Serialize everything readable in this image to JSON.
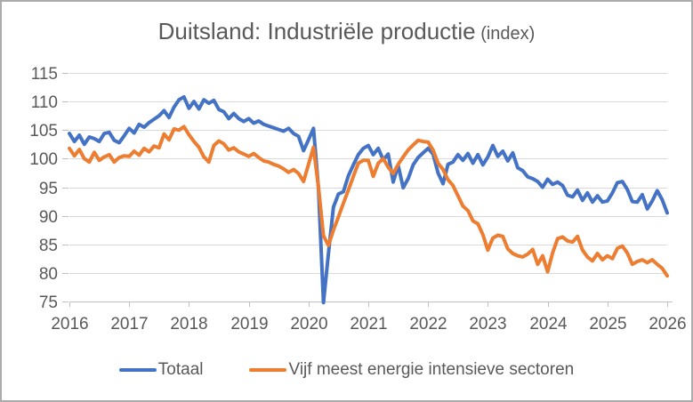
{
  "title": {
    "text": "Duitsland: Industriële productie",
    "suffix": " (index)"
  },
  "colors": {
    "totaal": "#4472C4",
    "energie": "#ED7D31",
    "gridline": "#D9D9D9",
    "axis": "#BFBFBF",
    "text": "#595959",
    "frame_border": "#ABABAB",
    "background": "#FFFFFF"
  },
  "legend": [
    {
      "label": "Totaal",
      "color": "#4472C4"
    },
    {
      "label": "Vijf meest energie intensieve sectoren",
      "color": "#ED7D31"
    }
  ],
  "chart_data": {
    "type": "line",
    "title": "Duitsland: Industriële productie (index)",
    "x_unit": "month",
    "x_start": "2016-01",
    "x_end": "2026-01",
    "x_tick_labels": [
      "2016",
      "2017",
      "2018",
      "2019",
      "2020",
      "2021",
      "2022",
      "2023",
      "2024",
      "2025",
      "2026"
    ],
    "y_ticks": [
      75,
      80,
      85,
      90,
      95,
      100,
      105,
      110,
      115
    ],
    "ylim": [
      75,
      115
    ],
    "grid": "horizontal",
    "legend_position": "bottom",
    "series": [
      {
        "name": "Totaal",
        "color": "#4472C4",
        "values": [
          104.4,
          103.0,
          104.1,
          102.5,
          103.8,
          103.5,
          103.0,
          104.4,
          104.6,
          103.2,
          102.8,
          104.0,
          105.3,
          104.5,
          106.0,
          105.5,
          106.3,
          106.9,
          107.5,
          108.4,
          107.2,
          109.0,
          110.3,
          110.8,
          108.8,
          110.0,
          108.7,
          110.3,
          109.7,
          110.2,
          108.6,
          108.2,
          107.0,
          107.9,
          107.0,
          106.5,
          107.0,
          106.2,
          106.6,
          106.0,
          105.7,
          105.4,
          105.1,
          104.8,
          105.3,
          104.4,
          103.9,
          101.4,
          103.3,
          105.3,
          94.8,
          74.8,
          83.4,
          91.5,
          93.8,
          94.2,
          97.0,
          98.9,
          100.7,
          101.8,
          102.3,
          100.7,
          101.8,
          99.8,
          100.8,
          95.9,
          98.8,
          94.9,
          96.5,
          98.9,
          100.2,
          101.0,
          101.8,
          100.8,
          97.5,
          95.6,
          99.0,
          99.4,
          100.7,
          99.7,
          100.9,
          99.2,
          100.7,
          98.9,
          100.3,
          102.3,
          100.4,
          101.3,
          99.6,
          101.0,
          98.4,
          97.9,
          96.8,
          96.5,
          96.0,
          95.0,
          96.4,
          95.5,
          95.9,
          95.3,
          93.6,
          93.3,
          94.5,
          92.7,
          94.0,
          92.4,
          93.5,
          92.4,
          92.6,
          94.0,
          95.8,
          96.0,
          94.6,
          92.5,
          92.4,
          93.7,
          91.2,
          92.6,
          94.4,
          92.8,
          90.5
        ]
      },
      {
        "name": "Vijf meest energie intensieve sectoren",
        "color": "#ED7D31",
        "values": [
          101.8,
          100.5,
          101.6,
          100.0,
          99.4,
          101.1,
          99.7,
          100.3,
          100.7,
          99.4,
          100.2,
          100.5,
          100.4,
          101.3,
          100.6,
          101.8,
          101.2,
          102.2,
          101.9,
          104.3,
          103.3,
          105.2,
          105.0,
          105.6,
          104.2,
          103.0,
          102.0,
          100.3,
          99.4,
          102.3,
          103.1,
          102.6,
          101.5,
          101.9,
          101.2,
          100.8,
          100.4,
          100.9,
          100.2,
          99.6,
          99.4,
          99.0,
          98.7,
          98.2,
          97.6,
          98.1,
          97.4,
          96.0,
          99.0,
          102.0,
          95.0,
          86.5,
          84.8,
          87.5,
          89.8,
          92.2,
          94.5,
          96.9,
          99.2,
          99.7,
          99.7,
          96.9,
          99.2,
          100.0,
          98.5,
          97.4,
          99.0,
          100.3,
          101.5,
          102.4,
          103.2,
          103.0,
          102.9,
          101.5,
          99.2,
          98.1,
          96.3,
          95.3,
          93.5,
          91.7,
          90.9,
          89.1,
          88.6,
          86.7,
          84.0,
          86.1,
          86.6,
          86.4,
          84.2,
          83.4,
          83.0,
          82.8,
          83.3,
          84.1,
          81.5,
          83.0,
          80.2,
          83.5,
          86.0,
          86.3,
          85.6,
          85.4,
          86.4,
          84.0,
          82.8,
          82.1,
          83.4,
          82.3,
          83.0,
          82.5,
          84.3,
          84.7,
          83.5,
          81.5,
          82.0,
          82.3,
          81.8,
          82.3,
          81.5,
          80.8,
          79.5
        ]
      }
    ]
  }
}
